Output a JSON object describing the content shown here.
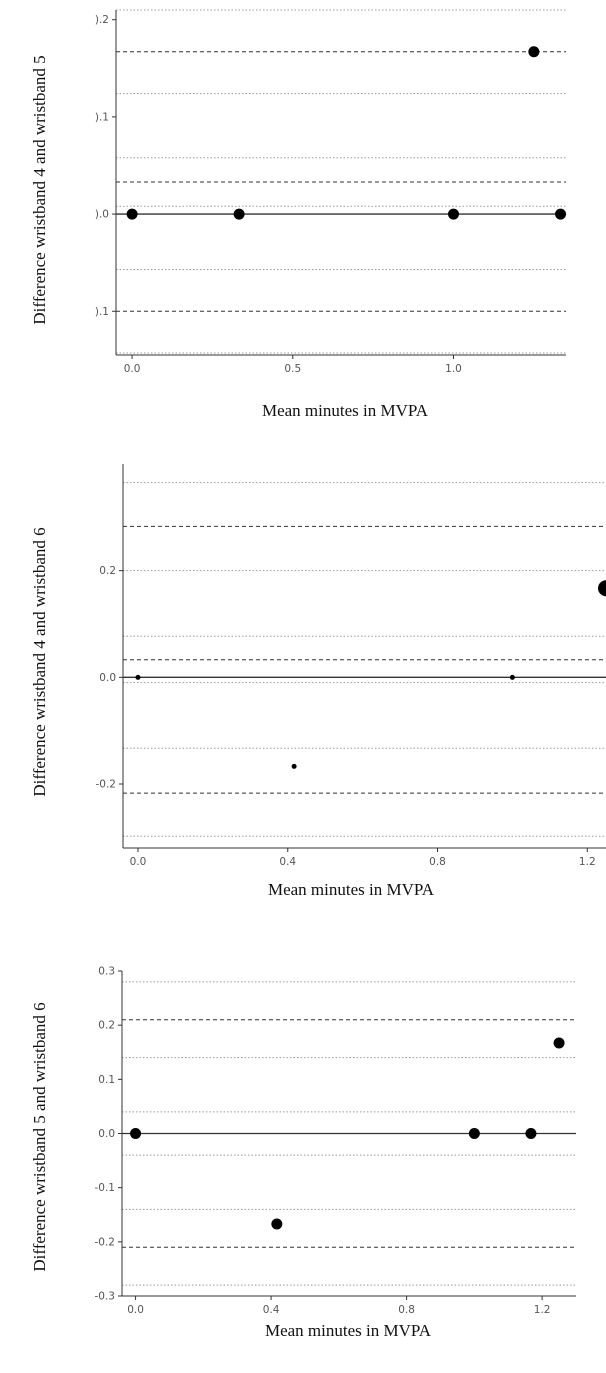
{
  "chart_data": [
    {
      "type": "scatter",
      "title": "",
      "xlabel": "Mean minutes in MVPA",
      "ylabel": "Difference wristband 4 and wristband 5",
      "xlim": [
        -0.05,
        1.35
      ],
      "ylim": [
        -0.145,
        0.21
      ],
      "x_ticks": [
        {
          "v": 0,
          "label": "0.0"
        },
        {
          "v": 0.5,
          "label": "0.5"
        },
        {
          "v": 1.0,
          "label": "1.0"
        }
      ],
      "y_ticks": [
        {
          "v": 0.2,
          "label": ").2"
        },
        {
          "v": 0.1,
          "label": ").1"
        },
        {
          "v": 0.0,
          "label": ").0"
        },
        {
          "v": -0.1,
          "label": ").1"
        }
      ],
      "zero_line": 0,
      "dashed_lines": [
        0.167,
        0.033,
        -0.1
      ],
      "dotted_lines": [
        0.21,
        0.124,
        0.058,
        0.008,
        -0.057,
        -0.143
      ],
      "points": [
        {
          "x": 0.0,
          "y": 0.0,
          "size": 1
        },
        {
          "x": 0.333,
          "y": 0.0,
          "size": 1
        },
        {
          "x": 1.0,
          "y": 0.0,
          "size": 1
        },
        {
          "x": 1.333,
          "y": 0.0,
          "size": 1
        },
        {
          "x": 1.25,
          "y": 0.167,
          "size": 1
        }
      ],
      "grid": false,
      "legend": "none"
    },
    {
      "type": "scatter",
      "title": "",
      "xlabel": "Mean minutes in MVPA",
      "ylabel": "Difference wristband 4 and wristband 6",
      "xlim": [
        -0.04,
        1.25
      ],
      "ylim": [
        -0.32,
        0.4
      ],
      "x_ticks": [
        {
          "v": 0,
          "label": "0.0"
        },
        {
          "v": 0.4,
          "label": "0.4"
        },
        {
          "v": 0.8,
          "label": "0.8"
        },
        {
          "v": 1.2,
          "label": "1.2"
        }
      ],
      "y_ticks": [
        {
          "v": 0.2,
          "label": "0.2"
        },
        {
          "v": 0.0,
          "label": "0.0"
        },
        {
          "v": -0.2,
          "label": "-0.2"
        }
      ],
      "zero_line": 0,
      "dashed_lines": [
        0.283,
        0.033,
        -0.217
      ],
      "dotted_lines": [
        0.365,
        0.2,
        0.077,
        -0.01,
        -0.133,
        -0.298
      ],
      "points": [
        {
          "x": 0.0,
          "y": 0.0,
          "size": 1
        },
        {
          "x": 1.0,
          "y": 0.0,
          "size": 1
        },
        {
          "x": 0.417,
          "y": -0.167,
          "size": 1
        },
        {
          "x": 1.25,
          "y": 0.167,
          "size": 3
        }
      ],
      "grid": false,
      "legend": "none"
    },
    {
      "type": "scatter",
      "title": "",
      "xlabel": "Mean minutes in MVPA",
      "ylabel": "Difference wristband 5 and wristband 6",
      "xlim": [
        -0.04,
        1.3
      ],
      "ylim": [
        -0.3,
        0.3
      ],
      "x_ticks": [
        {
          "v": 0,
          "label": "0.0"
        },
        {
          "v": 0.4,
          "label": "0.4"
        },
        {
          "v": 0.8,
          "label": "0.8"
        },
        {
          "v": 1.2,
          "label": "1.2"
        }
      ],
      "y_ticks": [
        {
          "v": 0.3,
          "label": "0.3"
        },
        {
          "v": 0.2,
          "label": "0.2"
        },
        {
          "v": 0.1,
          "label": "0.1"
        },
        {
          "v": 0.0,
          "label": "0.0"
        },
        {
          "v": -0.1,
          "label": "-0.1"
        },
        {
          "v": -0.2,
          "label": "-0.2"
        },
        {
          "v": -0.3,
          "label": "-0.3"
        }
      ],
      "zero_line": 0,
      "dashed_lines": [
        0.21,
        -0.21
      ],
      "dotted_lines": [
        0.28,
        0.14,
        0.04,
        -0.04,
        -0.14,
        -0.28
      ],
      "points": [
        {
          "x": 0.0,
          "y": 0.0,
          "size": 1
        },
        {
          "x": 1.0,
          "y": 0.0,
          "size": 1
        },
        {
          "x": 1.167,
          "y": 0.0,
          "size": 1
        },
        {
          "x": 1.25,
          "y": 0.167,
          "size": 1
        },
        {
          "x": 0.417,
          "y": -0.167,
          "size": 1
        }
      ],
      "grid": false,
      "legend": "none"
    }
  ]
}
